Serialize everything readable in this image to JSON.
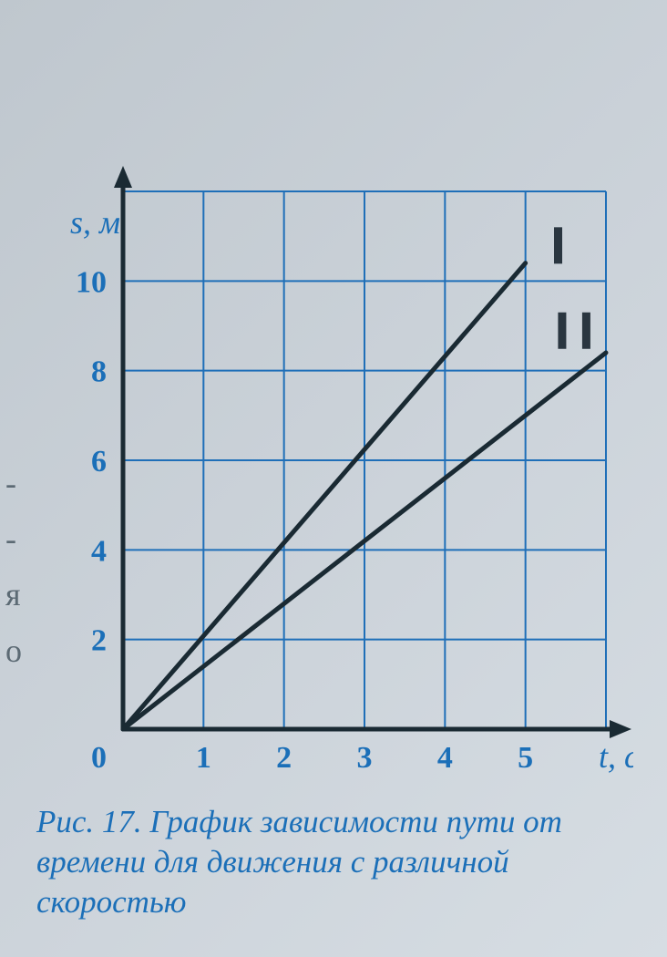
{
  "chart": {
    "type": "line",
    "y_axis_label": "s, м",
    "x_axis_label": "t, c",
    "y_ticks": [
      0,
      2,
      4,
      6,
      8,
      10
    ],
    "x_ticks": [
      0,
      1,
      2,
      3,
      4,
      5
    ],
    "xlim": [
      0,
      6
    ],
    "ylim": [
      0,
      12
    ],
    "grid_color": "#1f6fb8",
    "axis_color": "#1a2a33",
    "background_color": "#c5ccd3",
    "grid_stroke_width": 2,
    "axis_stroke_width": 5,
    "tick_fontsize": 34,
    "axis_label_fontsize": 36,
    "series": [
      {
        "name": "I",
        "label": "I",
        "points": [
          [
            0,
            0
          ],
          [
            5,
            10.4
          ]
        ],
        "color": "#1a2a33",
        "stroke_width": 5
      },
      {
        "name": "II",
        "label": "II",
        "points": [
          [
            0,
            0
          ],
          [
            6,
            8.4
          ]
        ],
        "color": "#1a2a33",
        "stroke_width": 5
      }
    ],
    "series_label_color": "#2a3640",
    "series_label_fontsize": 38
  },
  "caption": {
    "text": "Рис. 17. График зависимости пути от времени  для движения с различной скоростью",
    "color": "#1b6fb8",
    "fontsize": 35
  },
  "left_margin_letters": [
    "-",
    "-",
    "я",
    " ",
    "о"
  ]
}
